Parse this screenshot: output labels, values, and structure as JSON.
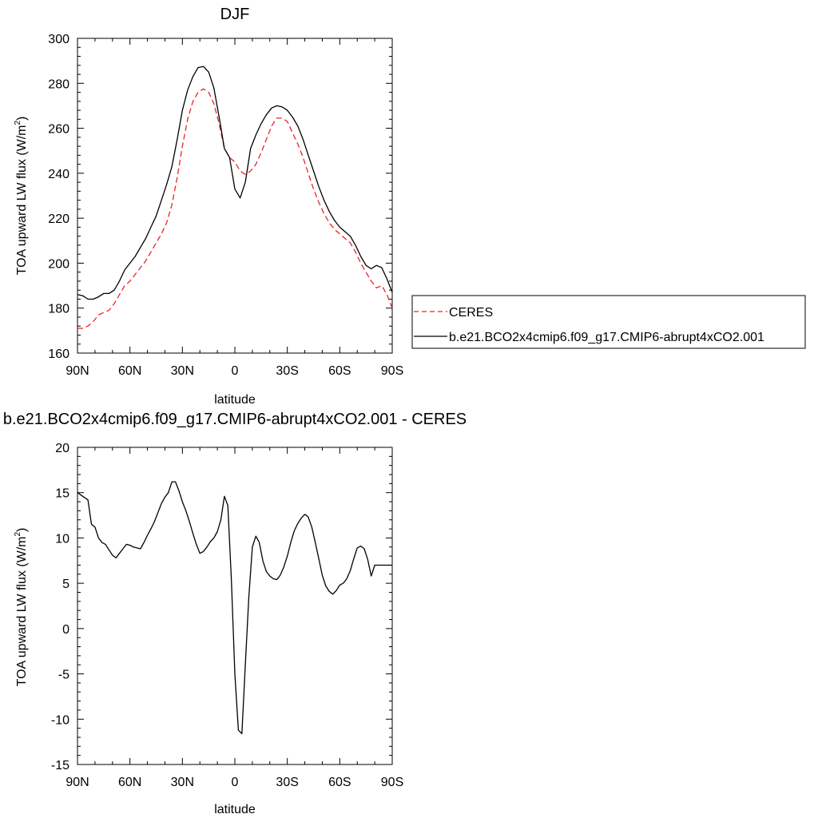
{
  "chart_data": [
    {
      "type": "line",
      "title": "DJF",
      "xlabel": "latitude",
      "ylabel": "TOA upward LW flux (W/m",
      "ylabel_sup": "2",
      "ylabel_close": ")",
      "xlim": [
        90,
        -90
      ],
      "ylim": [
        160,
        300
      ],
      "yticks": [
        160,
        180,
        200,
        220,
        240,
        260,
        280,
        300
      ],
      "xticks": [
        {
          "value": 90,
          "label": "90N"
        },
        {
          "value": 60,
          "label": "60N"
        },
        {
          "value": 30,
          "label": "30N"
        },
        {
          "value": 0,
          "label": "0"
        },
        {
          "value": -30,
          "label": "30S"
        },
        {
          "value": -60,
          "label": "60S"
        },
        {
          "value": -90,
          "label": "90S"
        }
      ],
      "legend": "right",
      "series": [
        {
          "name": "CERES",
          "color": "#e8242a",
          "dash": true,
          "x": [
            90,
            87,
            84,
            81,
            78,
            75,
            72,
            69,
            66,
            63,
            60,
            57,
            54,
            51,
            48,
            45,
            42,
            39,
            36,
            33,
            30,
            27,
            24,
            21,
            18,
            15,
            12,
            9,
            6,
            3,
            0,
            -3,
            -6,
            -9,
            -12,
            -15,
            -18,
            -21,
            -24,
            -27,
            -30,
            -33,
            -36,
            -39,
            -42,
            -45,
            -48,
            -51,
            -54,
            -57,
            -60,
            -63,
            -66,
            -69,
            -72,
            -75,
            -78,
            -81,
            -84,
            -87,
            -90
          ],
          "y": [
            171,
            171,
            172,
            174,
            177,
            178,
            179,
            182,
            186,
            190,
            192,
            195,
            198,
            201,
            205,
            209,
            213,
            218,
            226,
            238,
            252,
            264,
            272,
            276,
            277.5,
            276,
            271,
            262,
            251,
            247,
            245,
            241,
            239.5,
            241,
            244,
            249,
            255,
            261,
            264.5,
            264.5,
            263,
            258,
            253,
            247,
            240,
            233,
            227,
            222,
            218,
            215,
            213,
            211,
            209,
            205,
            200,
            196,
            192,
            189,
            190,
            186,
            180
          ]
        },
        {
          "name": "b.e21.BCO2x4cmip6.f09_g17.CMIP6-abrupt4xCO2.001",
          "color": "#000000",
          "dash": false,
          "x": [
            90,
            87,
            84,
            81,
            78,
            75,
            72,
            69,
            66,
            63,
            60,
            57,
            54,
            51,
            48,
            45,
            42,
            39,
            36,
            33,
            30,
            27,
            24,
            21,
            18,
            15,
            12,
            9,
            6,
            3,
            0,
            -3,
            -6,
            -9,
            -12,
            -15,
            -18,
            -21,
            -24,
            -27,
            -30,
            -33,
            -36,
            -39,
            -42,
            -45,
            -48,
            -51,
            -54,
            -57,
            -60,
            -63,
            -66,
            -69,
            -72,
            -75,
            -78,
            -81,
            -84,
            -87,
            -90
          ],
          "y": [
            186,
            185.5,
            184,
            184,
            185,
            186.5,
            186.5,
            188,
            192,
            197,
            200,
            203,
            207,
            211,
            216,
            221,
            228,
            235,
            243,
            255,
            268,
            277,
            283,
            287,
            287.5,
            285,
            278,
            265,
            251,
            247,
            233,
            229,
            236,
            251,
            257,
            262,
            266,
            269,
            270,
            269.5,
            268,
            265,
            261,
            255,
            248,
            241,
            234,
            228,
            223,
            219,
            216,
            214,
            212,
            208,
            203,
            199,
            197.5,
            199,
            198,
            193,
            187
          ]
        }
      ]
    },
    {
      "type": "line",
      "title": "b.e21.BCO2x4cmip6.f09_g17.CMIP6-abrupt4xCO2.001 - CERES",
      "xlabel": "latitude",
      "ylabel": "TOA upward LW flux (W/m",
      "ylabel_sup": "2",
      "ylabel_close": ")",
      "xlim": [
        90,
        -90
      ],
      "ylim": [
        -15,
        20
      ],
      "yticks": [
        -15,
        -10,
        -5,
        0,
        5,
        10,
        15,
        20
      ],
      "xticks": [
        {
          "value": 90,
          "label": "90N"
        },
        {
          "value": 60,
          "label": "60N"
        },
        {
          "value": 30,
          "label": "30N"
        },
        {
          "value": 0,
          "label": "0"
        },
        {
          "value": -30,
          "label": "30S"
        },
        {
          "value": -60,
          "label": "60S"
        },
        {
          "value": -90,
          "label": "90S"
        }
      ],
      "series": [
        {
          "color": "#000000",
          "dash": false,
          "x": [
            90,
            87,
            84,
            82,
            80,
            78,
            76,
            74,
            72,
            70,
            68,
            66,
            64,
            62,
            60,
            58,
            56,
            54,
            52,
            50,
            48,
            46,
            44,
            42,
            40,
            38,
            36,
            34,
            32,
            30,
            28,
            26,
            24,
            22,
            20,
            18,
            16,
            14,
            12,
            10,
            8,
            6,
            4,
            2,
            0,
            -2,
            -4,
            -6,
            -8,
            -10,
            -12,
            -14,
            -16,
            -18,
            -20,
            -22,
            -24,
            -26,
            -28,
            -30,
            -32,
            -34,
            -36,
            -38,
            -40,
            -42,
            -44,
            -46,
            -48,
            -50,
            -52,
            -54,
            -56,
            -58,
            -60,
            -62,
            -64,
            -66,
            -68,
            -70,
            -72,
            -74,
            -76,
            -78,
            -80,
            -82,
            -84,
            -86,
            -88,
            -90
          ],
          "y": [
            15,
            14.6,
            14.2,
            11.5,
            11.2,
            10,
            9.5,
            9.3,
            8.7,
            8.1,
            7.8,
            8.3,
            8.8,
            9.3,
            9.2,
            9,
            8.9,
            8.8,
            9.5,
            10.3,
            11,
            11.8,
            12.8,
            13.8,
            14.5,
            15,
            16.2,
            16.2,
            15.2,
            14,
            13,
            11.8,
            10.5,
            9.3,
            8.3,
            8.5,
            9,
            9.6,
            10,
            10.7,
            12,
            14.6,
            13.6,
            5.5,
            -5,
            -11.2,
            -11.6,
            -4,
            3.5,
            9,
            10.2,
            9.5,
            7.5,
            6.3,
            5.8,
            5.5,
            5.4,
            5.9,
            6.8,
            8,
            9.5,
            10.8,
            11.6,
            12.2,
            12.6,
            12.3,
            11.2,
            9.5,
            7.7,
            5.9,
            4.7,
            4.1,
            3.8,
            4.2,
            4.8,
            5,
            5.5,
            6.4,
            7.7,
            8.9,
            9.1,
            8.8,
            7.6,
            5.8,
            7.0,
            7.0,
            7.0,
            7.0,
            7.0,
            7.0
          ]
        }
      ]
    }
  ]
}
